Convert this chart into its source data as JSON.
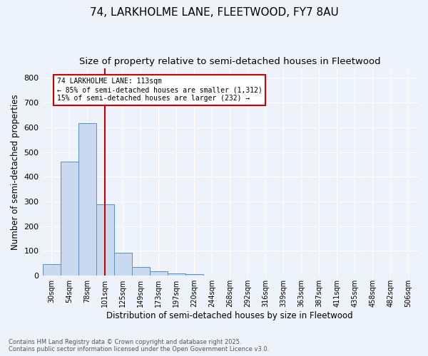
{
  "title1": "74, LARKHOLME LANE, FLEETWOOD, FY7 8AU",
  "title2": "Size of property relative to semi-detached houses in Fleetwood",
  "xlabel": "Distribution of semi-detached houses by size in Fleetwood",
  "ylabel": "Number of semi-detached properties",
  "categories": [
    "30sqm",
    "54sqm",
    "78sqm",
    "101sqm",
    "125sqm",
    "149sqm",
    "173sqm",
    "197sqm",
    "220sqm",
    "244sqm",
    "268sqm",
    "292sqm",
    "316sqm",
    "339sqm",
    "363sqm",
    "387sqm",
    "411sqm",
    "435sqm",
    "458sqm",
    "482sqm",
    "506sqm"
  ],
  "values": [
    46,
    460,
    616,
    290,
    94,
    36,
    18,
    10,
    5,
    0,
    0,
    0,
    0,
    0,
    0,
    0,
    0,
    0,
    0,
    0,
    0
  ],
  "bar_color": "#c9d9f0",
  "bar_edge_color": "#5b8dc8",
  "vline_x": 3.0,
  "vline_color": "#cc0000",
  "annotation_title": "74 LARKHOLME LANE: 113sqm",
  "annotation_line1": "← 85% of semi-detached houses are smaller (1,312)",
  "annotation_line2": "15% of semi-detached houses are larger (232) →",
  "annotation_box_color": "#cc0000",
  "ylim": [
    0,
    840
  ],
  "yticks": [
    0,
    100,
    200,
    300,
    400,
    500,
    600,
    700,
    800
  ],
  "footer1": "Contains HM Land Registry data © Crown copyright and database right 2025.",
  "footer2": "Contains public sector information licensed under the Open Government Licence v3.0.",
  "bg_color": "#eef2fb",
  "grid_color": "#ffffff",
  "title1_fontsize": 11,
  "title2_fontsize": 9.5
}
